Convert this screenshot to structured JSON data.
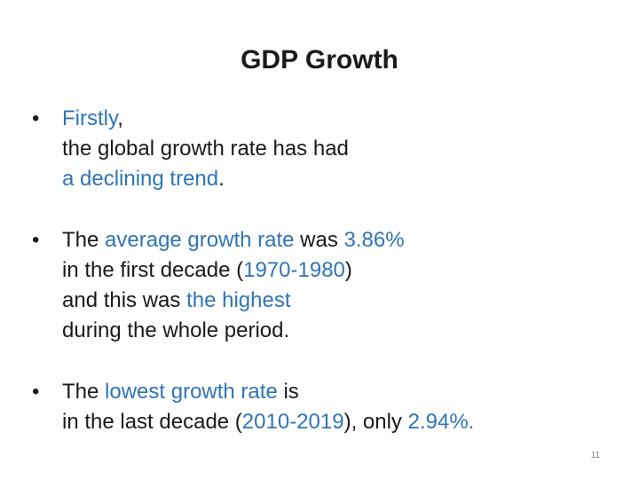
{
  "slide": {
    "title": "GDP Growth",
    "page_number": "11",
    "bullet_glyph": "•",
    "highlight_color": "#2e75b6",
    "bullets": [
      {
        "lines": [
          [
            {
              "text": "Firstly",
              "hl": true
            },
            {
              "text": ",",
              "hl": false
            }
          ],
          [
            {
              "text": "the global growth rate has had",
              "hl": false
            }
          ],
          [
            {
              "text": "a declining trend",
              "hl": true
            },
            {
              "text": ".",
              "hl": false
            }
          ]
        ]
      },
      {
        "lines": [
          [
            {
              "text": "The ",
              "hl": false
            },
            {
              "text": "average growth rate",
              "hl": true
            },
            {
              "text": " was ",
              "hl": false
            },
            {
              "text": "3.86%",
              "hl": true
            }
          ],
          [
            {
              "text": "in the first decade (",
              "hl": false
            },
            {
              "text": "1970-1980",
              "hl": true
            },
            {
              "text": ")",
              "hl": false
            }
          ],
          [
            {
              "text": "and this was ",
              "hl": false
            },
            {
              "text": "the highest",
              "hl": true
            }
          ],
          [
            {
              "text": "during the whole period.",
              "hl": false
            }
          ]
        ]
      },
      {
        "lines": [
          [
            {
              "text": "The ",
              "hl": false
            },
            {
              "text": "lowest growth rate",
              "hl": true
            },
            {
              "text": " is",
              "hl": false
            }
          ],
          [
            {
              "text": "in the last decade (",
              "hl": false
            },
            {
              "text": "2010-2019",
              "hl": true
            },
            {
              "text": "), only ",
              "hl": false
            },
            {
              "text": "2.94%.",
              "hl": true
            }
          ]
        ]
      }
    ]
  }
}
